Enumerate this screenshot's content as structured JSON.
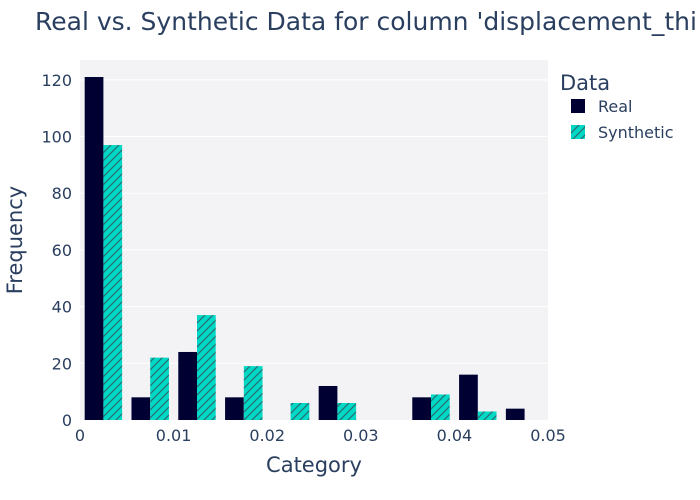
{
  "chart_data": {
    "type": "bar",
    "title": "Real vs. Synthetic Data for column 'displacement_thi",
    "xlabel": "Category",
    "ylabel": "Frequency",
    "xlim": [
      0,
      0.05
    ],
    "ylim": [
      0,
      127
    ],
    "x_ticks": [
      "0",
      "0.01",
      "0.02",
      "0.03",
      "0.04",
      "0.05"
    ],
    "y_ticks": [
      "0",
      "20",
      "40",
      "60",
      "80",
      "100",
      "120"
    ],
    "categories": [
      0.0025,
      0.0075,
      0.0125,
      0.0175,
      0.0225,
      0.0275,
      0.0325,
      0.0375,
      0.0425,
      0.0475
    ],
    "legend_title": "Data",
    "legend_position": "top-right",
    "grid": true,
    "series": [
      {
        "name": "Real",
        "color": "#000033",
        "pattern": "none",
        "values": [
          121,
          8,
          24,
          8,
          0,
          12,
          0,
          8,
          16,
          4
        ]
      },
      {
        "name": "Synthetic",
        "color": "#00d9c6",
        "pattern": "hatch",
        "values": [
          97,
          22,
          37,
          19,
          6,
          6,
          0,
          9,
          3,
          0
        ]
      }
    ]
  }
}
